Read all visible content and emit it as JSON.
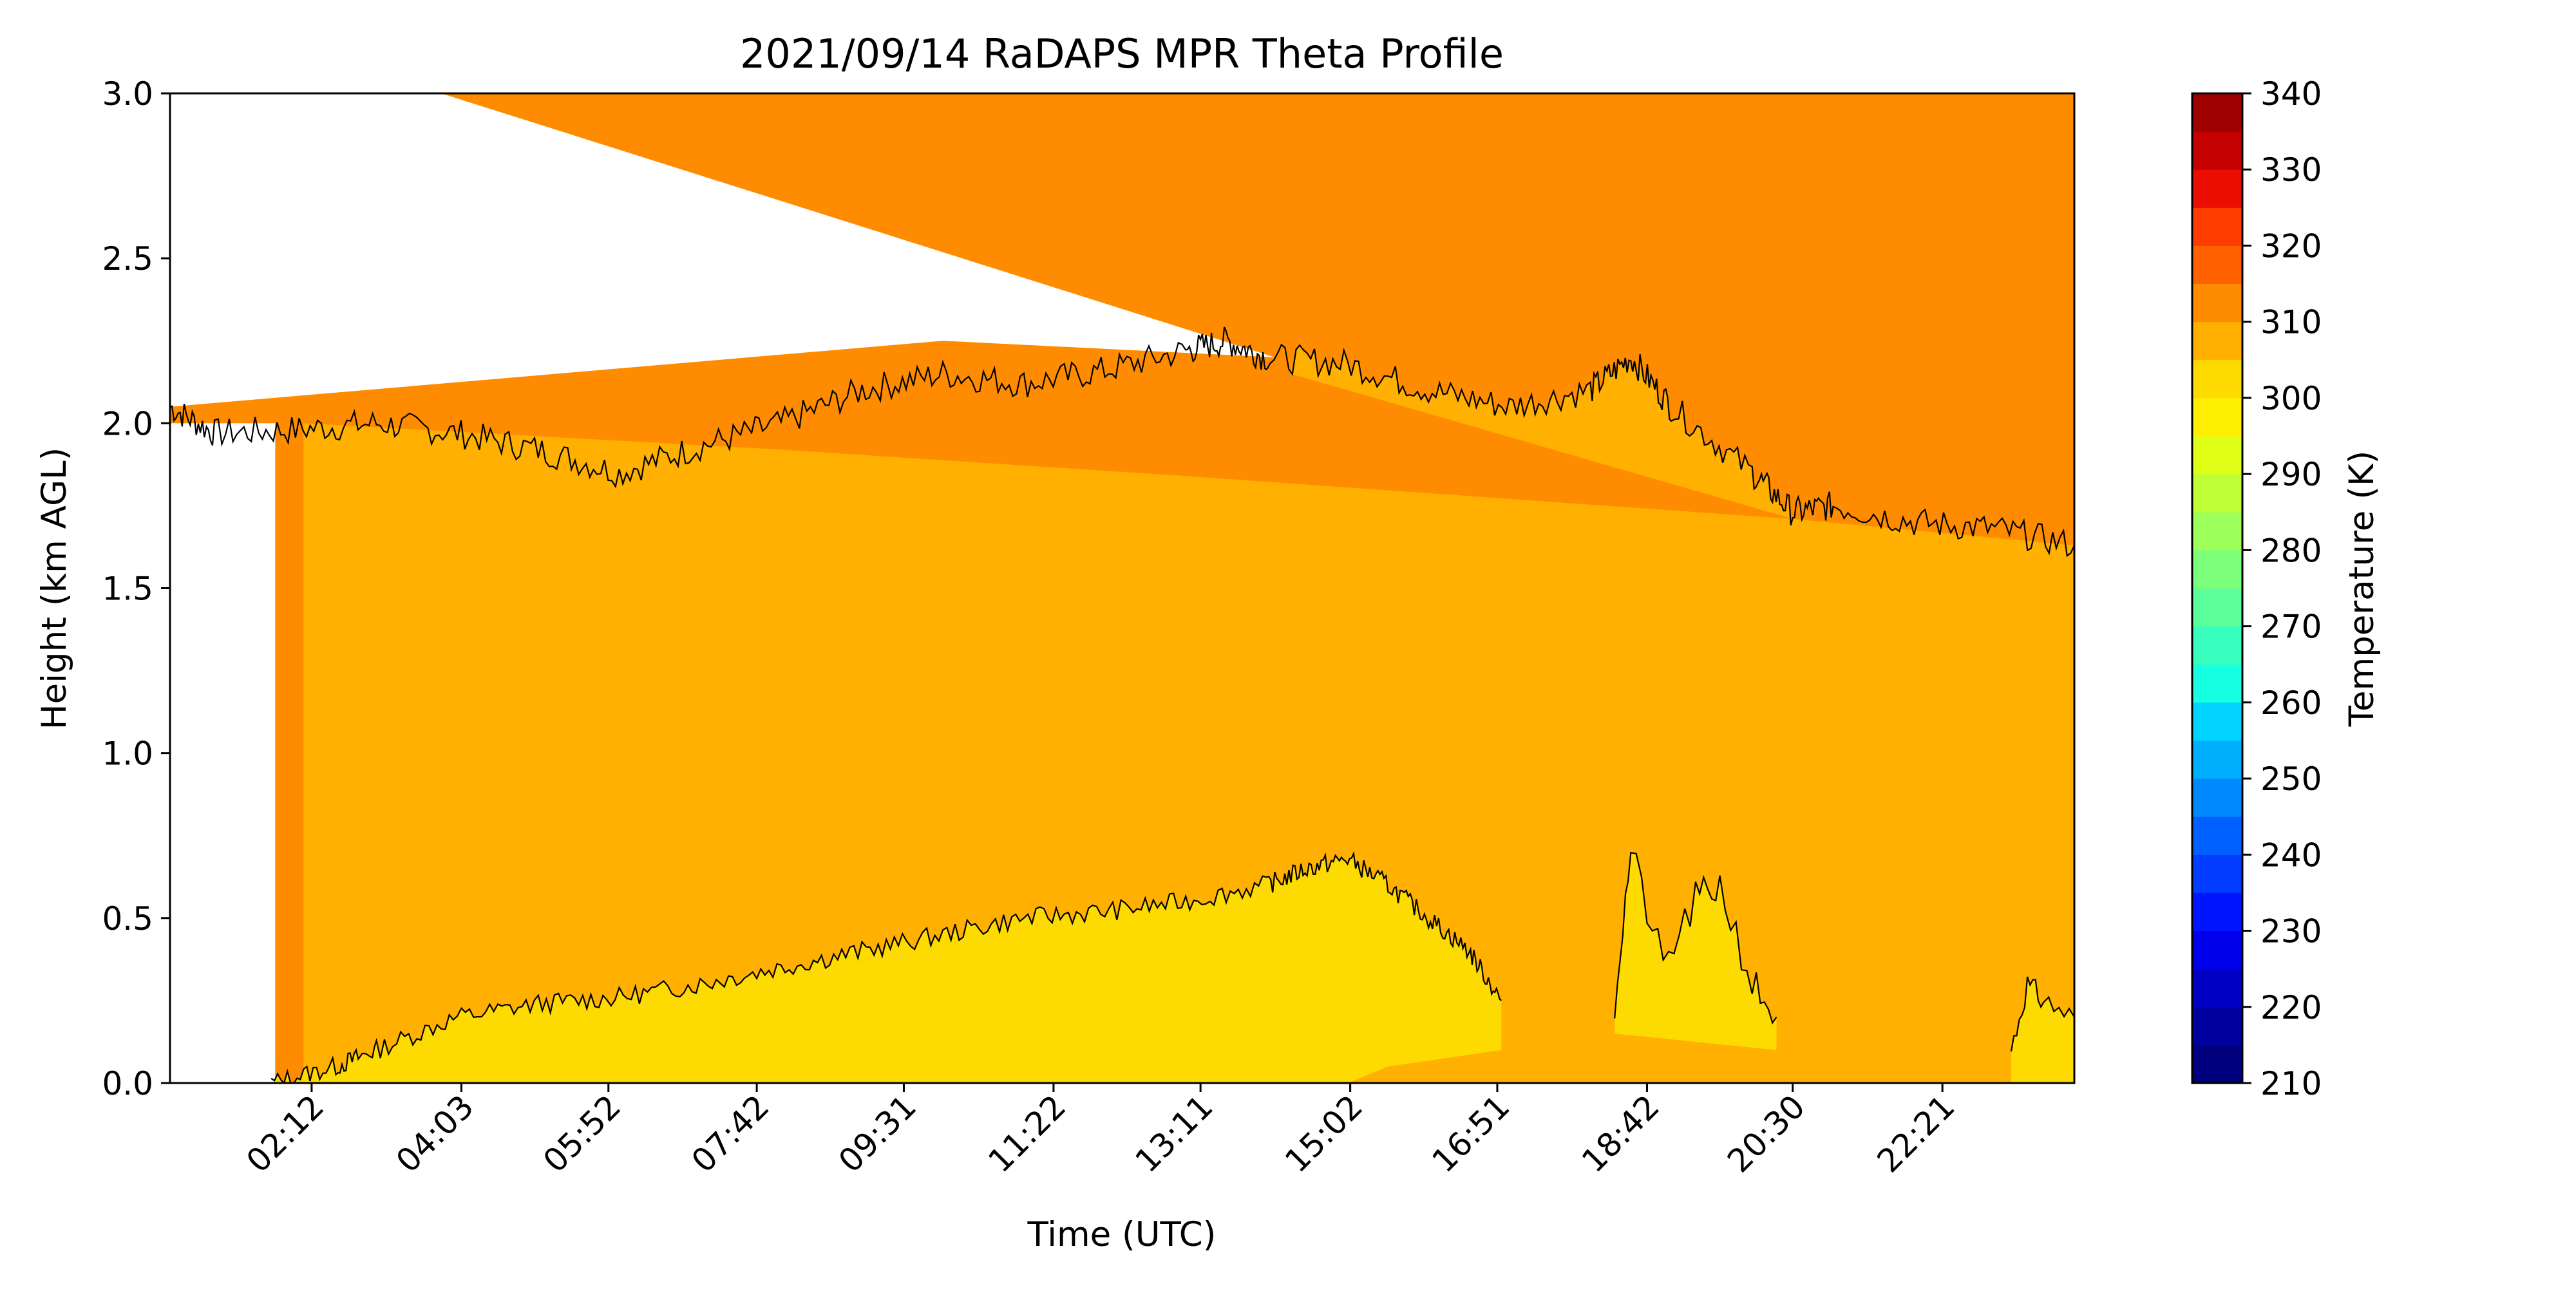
{
  "colors": {
    "band_290_300": "#fedb00",
    "band_300_310": "#ffb000",
    "band_310_320": "#ff8c00",
    "contour_line": "#000000",
    "axes_line": "#000000"
  },
  "chart_data": {
    "type": "heatmap",
    "subtype": "filled-contour",
    "title": "2021/09/14 RaDAPS MPR Theta Profile",
    "xlabel": "Time (UTC)",
    "ylabel": "Height (km AGL)",
    "x_unit": "hours (UTC)",
    "xlim": [
      0.45,
      23.98
    ],
    "ylim": [
      0,
      3
    ],
    "x_tick_labels": [
      "02:12",
      "04:03",
      "05:52",
      "07:42",
      "09:31",
      "11:22",
      "13:11",
      "15:02",
      "16:51",
      "18:42",
      "20:30",
      "22:21"
    ],
    "x_tick_values": [
      2.2,
      4.05,
      5.867,
      7.7,
      9.517,
      11.367,
      13.183,
      15.033,
      16.85,
      18.7,
      20.5,
      22.35
    ],
    "y_tick_labels": [
      "0.0",
      "0.5",
      "1.0",
      "1.5",
      "2.0",
      "2.5",
      "3.0"
    ],
    "y_tick_values": [
      0,
      0.5,
      1.0,
      1.5,
      2.0,
      2.5,
      3.0
    ],
    "grid": false,
    "colorbar": {
      "label": "Temperature (K)",
      "min": 210,
      "max": 340,
      "tick_labels": [
        "210",
        "220",
        "230",
        "240",
        "250",
        "260",
        "270",
        "280",
        "290",
        "300",
        "310",
        "320",
        "330",
        "340"
      ],
      "tick_values": [
        210,
        220,
        230,
        240,
        250,
        260,
        270,
        280,
        290,
        300,
        310,
        320,
        330,
        340
      ],
      "levels": [
        210,
        215,
        220,
        225,
        230,
        235,
        240,
        245,
        250,
        255,
        260,
        265,
        270,
        275,
        280,
        285,
        290,
        295,
        300,
        305,
        310,
        315,
        320,
        325,
        330,
        335,
        340
      ],
      "band_colors": [
        "#00007f",
        "#00009f",
        "#0000c5",
        "#0000ea",
        "#0014ff",
        "#003cff",
        "#0060ff",
        "#0088ff",
        "#00b0ff",
        "#00d4ff",
        "#16ffe0",
        "#38ffbe",
        "#5aff9c",
        "#7cff7a",
        "#9cff5a",
        "#beff38",
        "#e0ff16",
        "#fef000",
        "#fedb00",
        "#ffb000",
        "#ff8c00",
        "#ff6000",
        "#ff3c00",
        "#ea0e00",
        "#c50000",
        "#9f0000"
      ]
    },
    "regions": [
      {
        "range_K": "300-310",
        "description": "bulk of profile from 0 km up to the upper contour line (~1.6-2.3 km)"
      },
      {
        "range_K": "295-300",
        "description": "near-surface layer rising from 0 km at 01:40 to ~0.7 km near 14:30, ending ~16:55; isolated patches 18:40-20:10 and 22:30-24:00"
      },
      {
        "range_K": "310-320",
        "description": "upper layer above ~2 km"
      }
    ],
    "upper_contour_km": {
      "x": [
        0.45,
        1.0,
        2.0,
        3.0,
        4.0,
        5.0,
        6.0,
        7.0,
        8.0,
        9.0,
        10.0,
        11.0,
        12.0,
        13.0,
        13.5,
        14.0,
        15.0,
        16.0,
        17.0,
        18.0,
        18.5,
        19.0,
        20.0,
        20.5,
        21.0,
        22.0,
        23.0,
        23.98
      ],
      "y": [
        2.05,
        1.97,
        1.98,
        2.0,
        1.97,
        1.92,
        1.85,
        1.93,
        2.0,
        2.1,
        2.15,
        2.12,
        2.16,
        2.22,
        2.25,
        2.2,
        2.18,
        2.1,
        2.05,
        2.1,
        2.2,
        2.05,
        1.85,
        1.73,
        1.75,
        1.7,
        1.68,
        1.63
      ]
    },
    "near_surface_contour_km": {
      "x": [
        1.7,
        2.5,
        3.0,
        4.0,
        5.0,
        6.0,
        7.0,
        8.0,
        9.0,
        10.0,
        11.0,
        12.0,
        13.0,
        14.0,
        14.5,
        15.0,
        15.5,
        16.0,
        16.5,
        16.9
      ],
      "y": [
        0.0,
        0.05,
        0.1,
        0.2,
        0.24,
        0.26,
        0.3,
        0.35,
        0.4,
        0.45,
        0.5,
        0.52,
        0.55,
        0.6,
        0.65,
        0.68,
        0.6,
        0.5,
        0.4,
        0.25
      ]
    }
  }
}
